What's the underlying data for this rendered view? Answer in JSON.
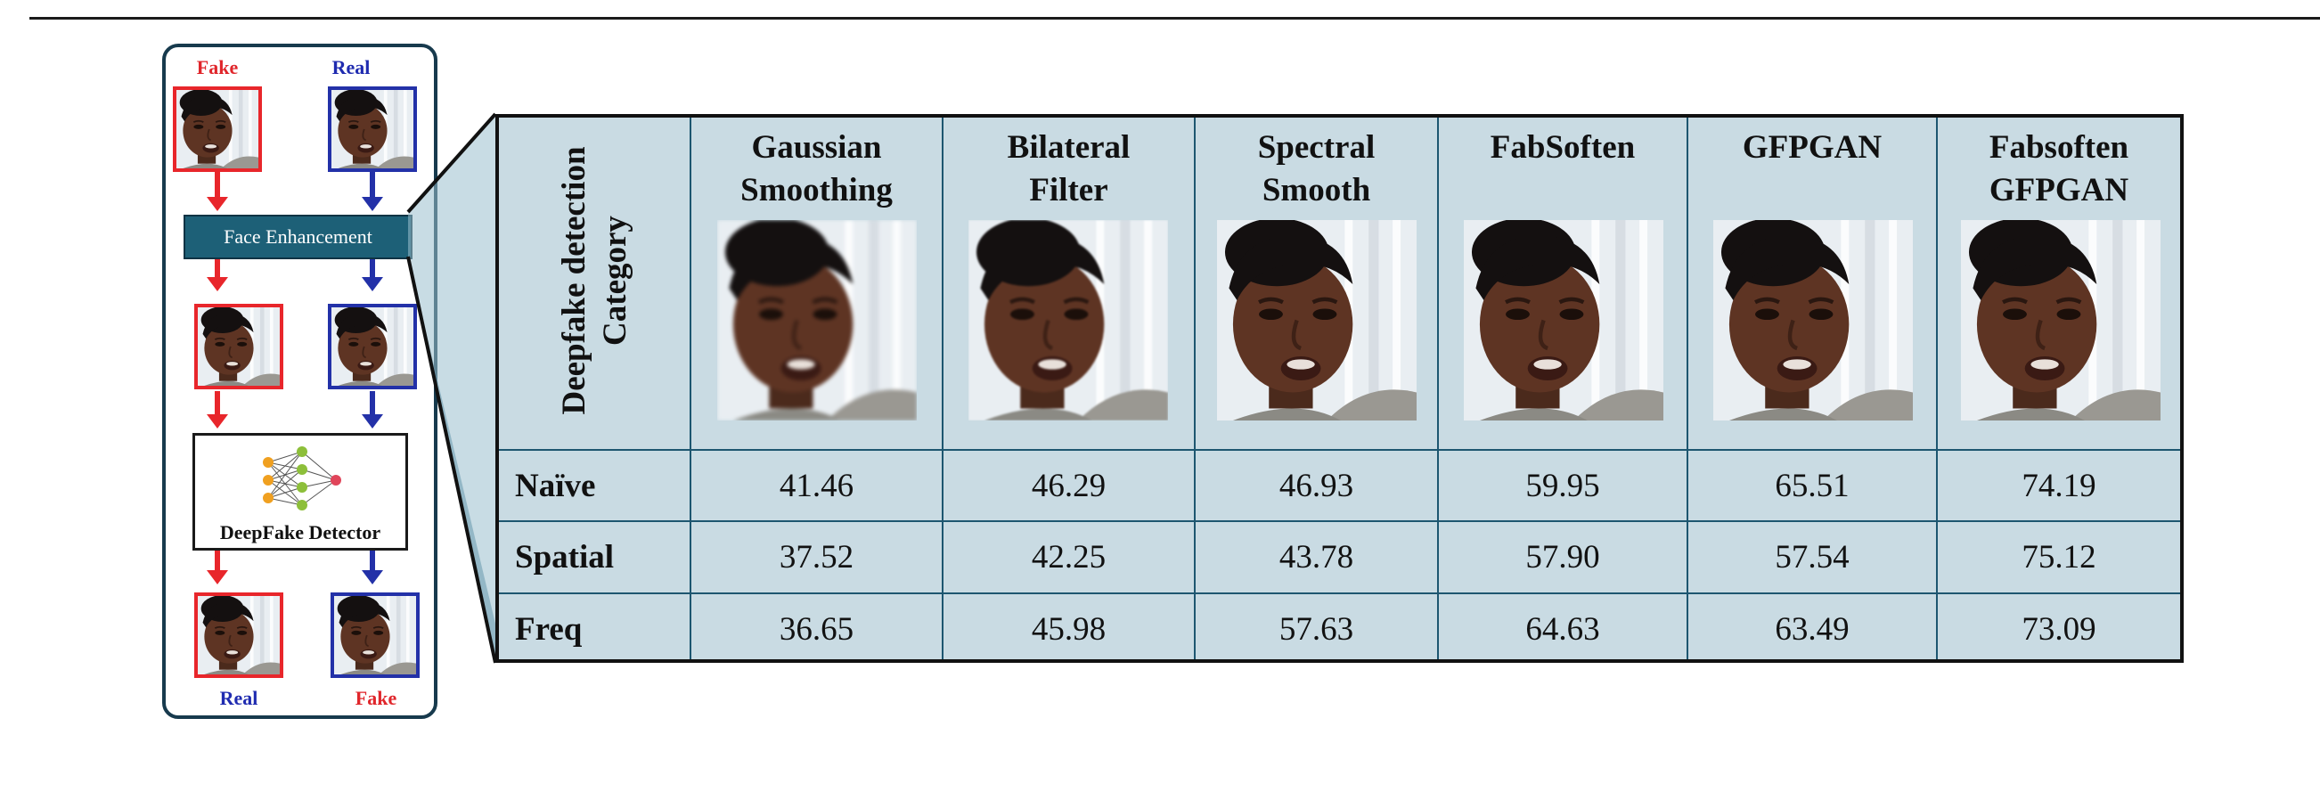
{
  "pipeline": {
    "top_labels": [
      "Fake",
      "Real"
    ],
    "bottom_labels": [
      "Real",
      "Fake"
    ],
    "enhancement_label": "Face Enhancement",
    "detector_label": "DeepFake Detector"
  },
  "table": {
    "row_header": "Deepfake detection Category",
    "row_header_lines": [
      "Deepfake detection",
      "Category"
    ],
    "columns": [
      {
        "lines": [
          "Gaussian",
          "Smoothing"
        ]
      },
      {
        "lines": [
          "Bilateral",
          "Filter"
        ]
      },
      {
        "lines": [
          "Spectral",
          "Smooth"
        ]
      },
      {
        "lines": [
          "FabSoften",
          ""
        ]
      },
      {
        "lines": [
          "GFPGAN",
          ""
        ]
      },
      {
        "lines": [
          "Fabsoften",
          "GFPGAN"
        ]
      }
    ],
    "rows": [
      {
        "label": "Naïve",
        "values": [
          "41.46",
          "46.29",
          "46.93",
          "59.95",
          "65.51",
          "74.19"
        ]
      },
      {
        "label": "Spatial",
        "values": [
          "37.52",
          "42.25",
          "43.78",
          "57.90",
          "57.54",
          "75.12"
        ]
      },
      {
        "label": "Freq",
        "values": [
          "36.65",
          "45.98",
          "57.63",
          "64.63",
          "63.49",
          "73.09"
        ]
      }
    ]
  },
  "colors": {
    "fake_red": "#e8262b",
    "real_blue": "#2331a8",
    "table_fill": "#c9dbe3",
    "enhancement_fill": "#1d6077"
  }
}
